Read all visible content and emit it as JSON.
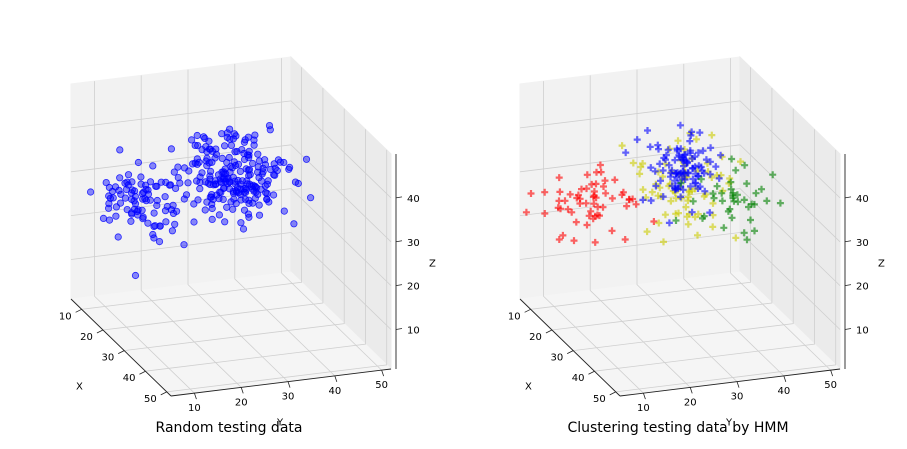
{
  "chart_data": [
    {
      "type": "scatter3d",
      "title": "Random testing data",
      "xlabel": "X",
      "ylabel": "Y",
      "zlabel": "Z",
      "xlim": [
        5,
        52
      ],
      "ylim": [
        5,
        52
      ],
      "zlim": [
        1,
        50
      ],
      "xticks": [
        10,
        20,
        30,
        40,
        50
      ],
      "yticks": [
        10,
        20,
        30,
        40,
        50
      ],
      "zticks": [
        10,
        20,
        30,
        40
      ],
      "grid": true,
      "marker": "circle",
      "series": [
        {
          "color": "#0000ff",
          "marker": "circle",
          "clusters": [
            {
              "center": [
                14,
                16,
                26
              ],
              "spread": [
                5,
                5,
                4
              ],
              "count": 90
            },
            {
              "center": [
                15,
                36,
                28
              ],
              "spread": [
                5,
                5,
                4
              ],
              "count": 90
            },
            {
              "center": [
                36,
                25,
                42
              ],
              "spread": [
                5,
                5,
                4
              ],
              "count": 130
            }
          ]
        }
      ]
    },
    {
      "type": "scatter3d",
      "title": "Clustering testing data by HMM",
      "xlabel": "X",
      "ylabel": "Y",
      "zlabel": "Z",
      "xlim": [
        5,
        52
      ],
      "ylim": [
        5,
        52
      ],
      "zlim": [
        1,
        50
      ],
      "xticks": [
        10,
        20,
        30,
        40,
        50
      ],
      "yticks": [
        10,
        20,
        30,
        40,
        50
      ],
      "zticks": [
        10,
        20,
        30,
        40
      ],
      "grid": true,
      "series": [
        {
          "color": "#ff0000",
          "marker": "plus",
          "clusters": [
            {
              "center": [
                14,
                16,
                26
              ],
              "spread": [
                5,
                5,
                4
              ],
              "count": 60
            }
          ]
        },
        {
          "color": "#cccc00",
          "marker": "plus",
          "clusters": [
            {
              "center": [
                15,
                36,
                28
              ],
              "spread": [
                5,
                5,
                4
              ],
              "count": 75
            }
          ]
        },
        {
          "color": "#0000ff",
          "marker": "plus",
          "clusters": [
            {
              "center": [
                36,
                25,
                42
              ],
              "spread": [
                4,
                4,
                3
              ],
              "count": 100
            }
          ]
        },
        {
          "color": "#008000",
          "marker": "plus",
          "clusters": [
            {
              "center": [
                40,
                34,
                36
              ],
              "spread": [
                4,
                5,
                4
              ],
              "count": 40
            }
          ]
        }
      ]
    }
  ]
}
